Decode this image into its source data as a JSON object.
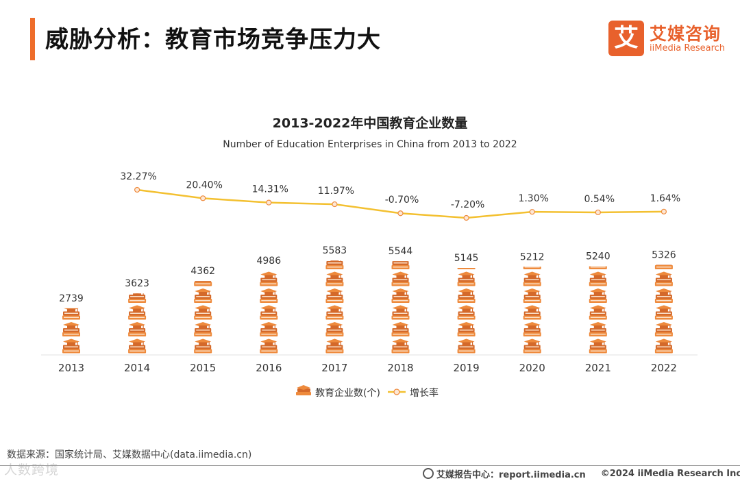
{
  "header": {
    "title": "威胁分析：教育市场竞争压力大"
  },
  "logo": {
    "mark": "艾",
    "name_cn": "艾媒咨询",
    "name_en": "iiMedia Research"
  },
  "chart_data": {
    "type": "bar",
    "title": "2013-2022年中国教育企业数量",
    "subtitle": "Number of Education Enterprises in China from 2013 to 2022",
    "categories": [
      "2013",
      "2014",
      "2015",
      "2016",
      "2017",
      "2018",
      "2019",
      "2020",
      "2021",
      "2022"
    ],
    "series": [
      {
        "name": "教育企业数(个)",
        "type": "pictorial-bar",
        "values": [
          2739,
          3623,
          4362,
          4986,
          5583,
          5544,
          5145,
          5212,
          5240,
          5326
        ],
        "labels": [
          "2739",
          "3623",
          "4362",
          "4986",
          "5583",
          "5544",
          "5145",
          "5212",
          "5240",
          "5326"
        ]
      },
      {
        "name": "增长率",
        "type": "line",
        "values": [
          null,
          32.27,
          20.4,
          14.31,
          11.97,
          -0.7,
          -7.2,
          1.3,
          0.54,
          1.64
        ],
        "labels": [
          "",
          "32.27%",
          "20.40%",
          "14.31%",
          "11.97%",
          "-0.70%",
          "-7.20%",
          "1.30%",
          "0.54%",
          "1.64%"
        ]
      }
    ],
    "ylim": [
      0,
      6000
    ],
    "legend_position": "bottom-center",
    "colors": {
      "bar": "#ee8a3c",
      "bar_dark": "#d4692a",
      "bar_light": "#fbe2cc",
      "line": "#f3c030",
      "marker_fill": "#fde8d6",
      "marker_stroke": "#ee8a3c"
    }
  },
  "source": {
    "text": "数据来源：国家统计局、艾媒数据中心(data.iimedia.cn)"
  },
  "watermark": "人数跨境",
  "footer": {
    "center_label": "艾媒报告中心：report.iimedia.cn",
    "copyright": "©2024  iiMedia Research  Inc",
    "icon": "globe-icon"
  }
}
